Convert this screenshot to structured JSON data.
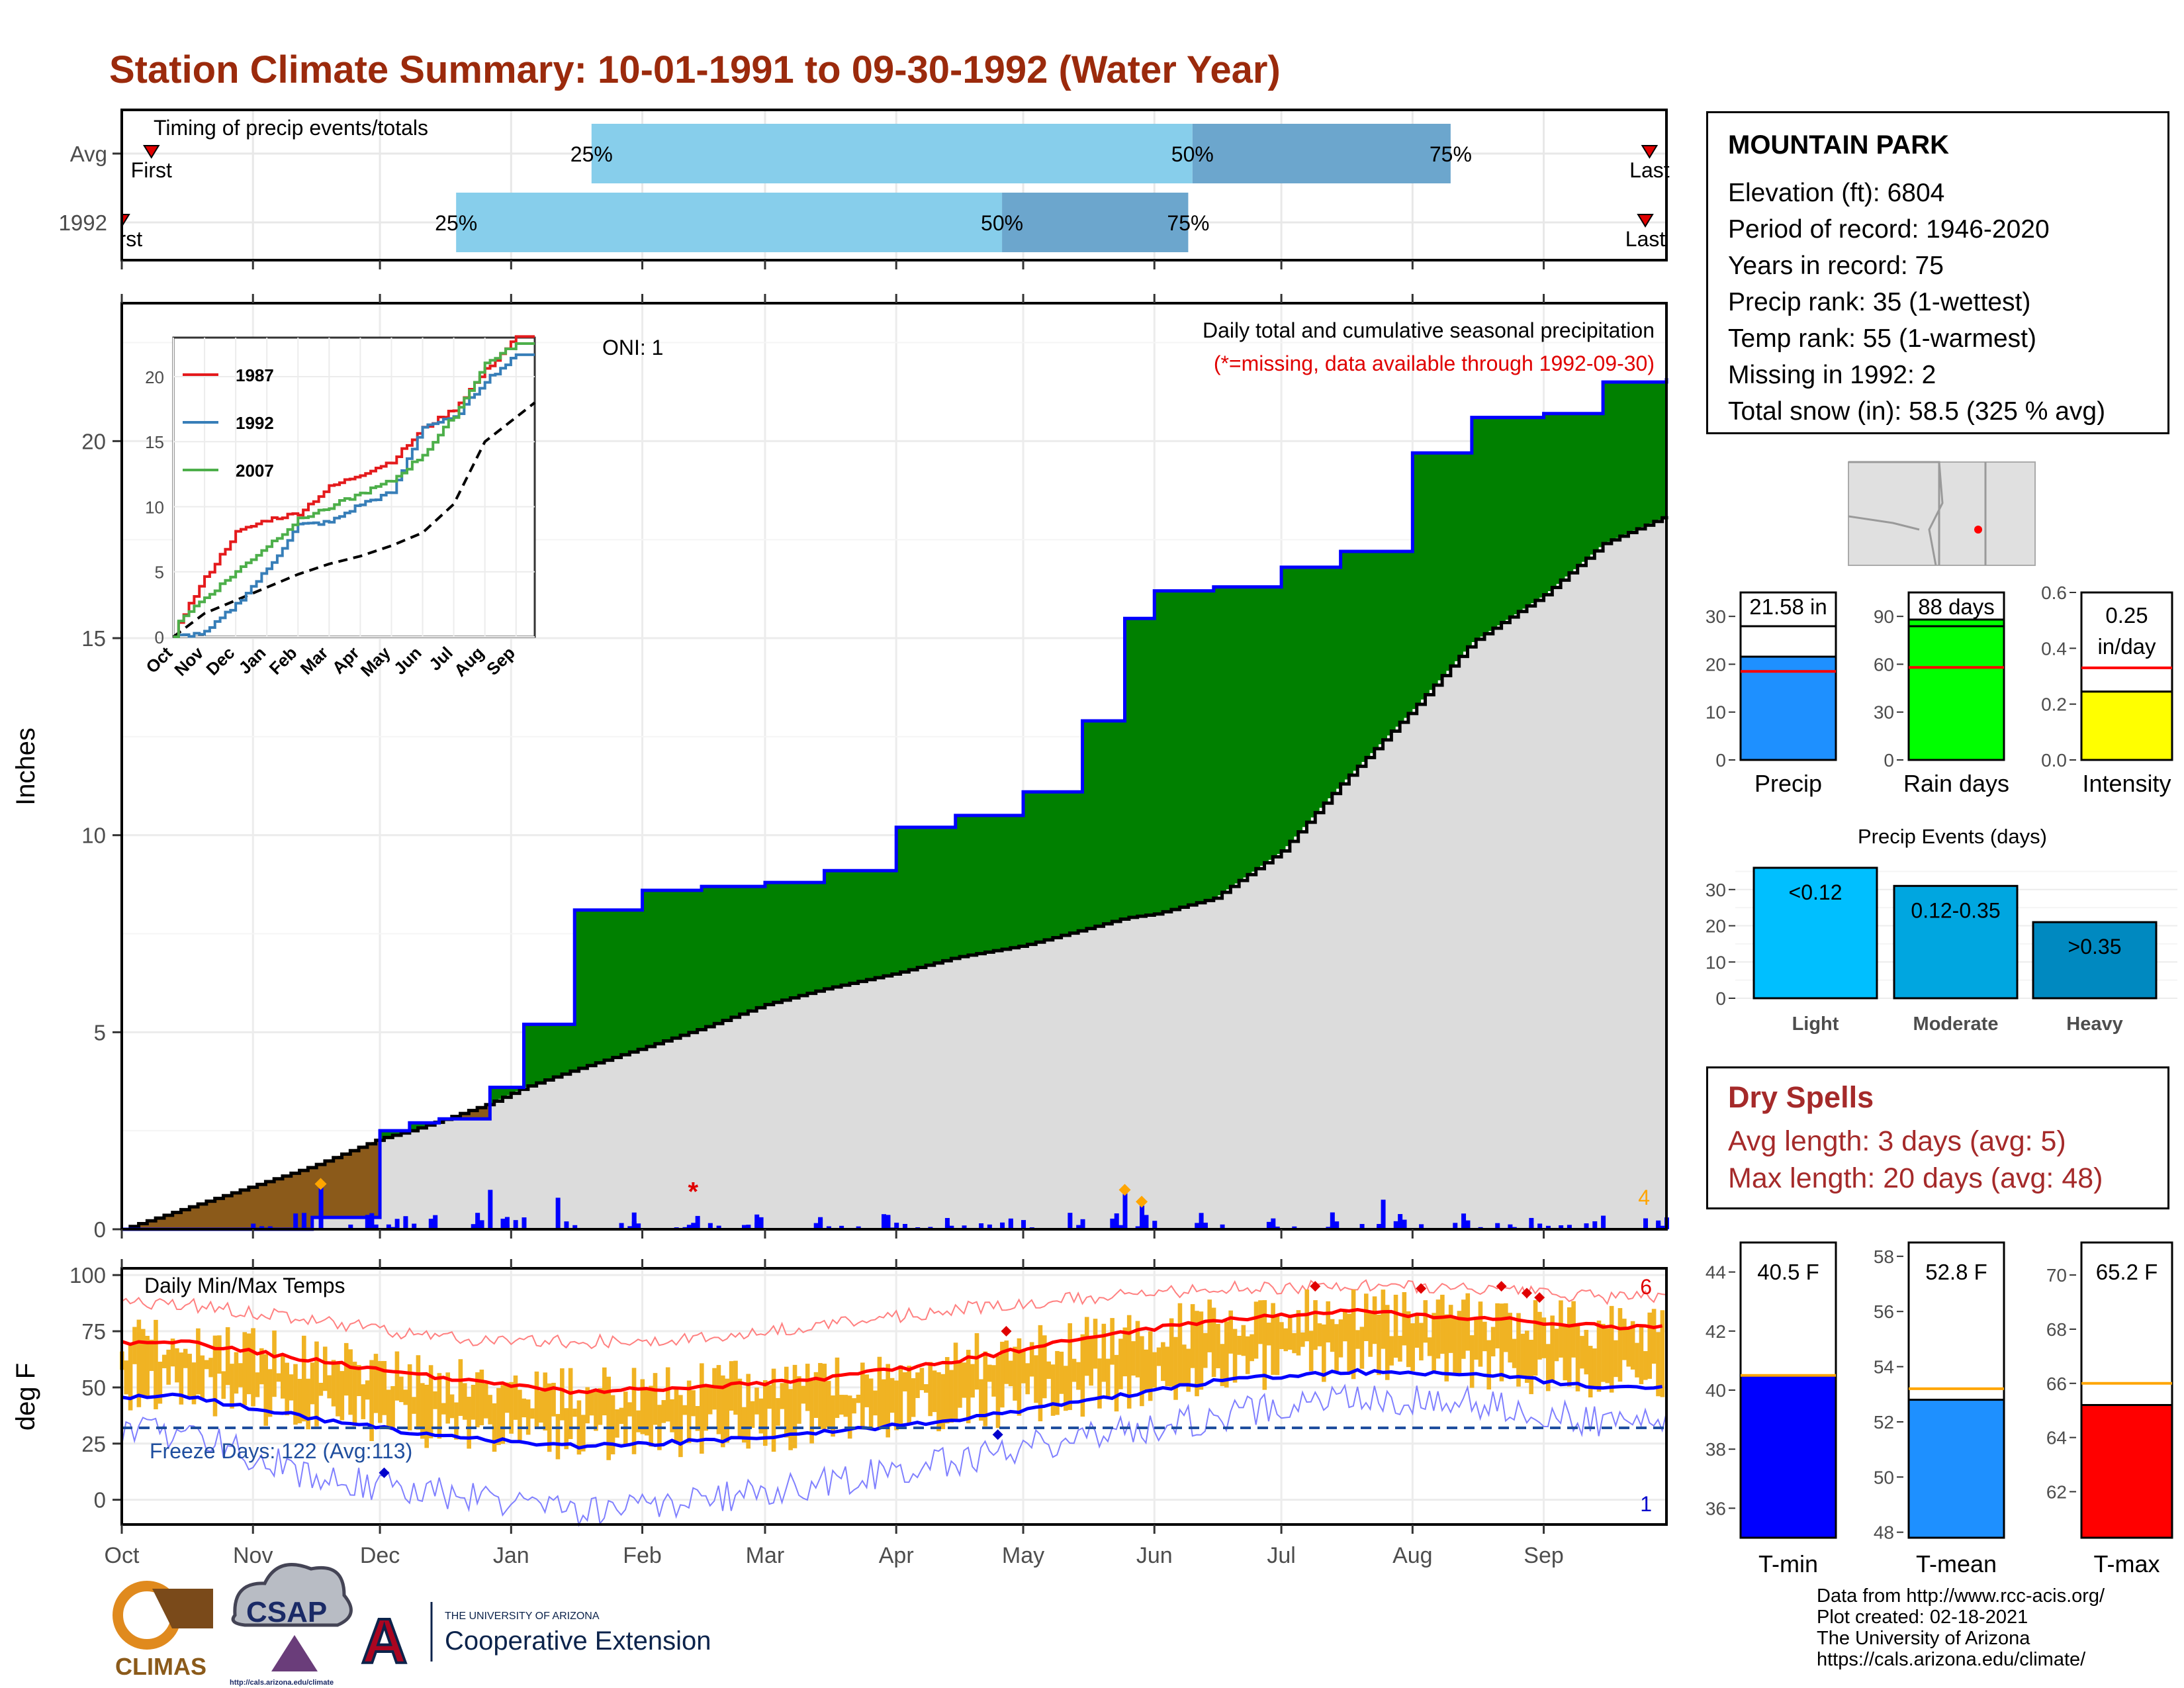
{
  "title": "Station Climate Summary: 10-01-1991 to 09-30-1992 (Water Year)",
  "months": [
    "Oct",
    "Nov",
    "Dec",
    "Jan",
    "Feb",
    "Mar",
    "Apr",
    "May",
    "Jun",
    "Jul",
    "Aug",
    "Sep"
  ],
  "timing_panel": {
    "title": "Timing of precip events/totals",
    "rows": [
      {
        "label": "Avg",
        "first_label": "First",
        "last_label": "Last",
        "p25_label": "25%",
        "p50_label": "50%",
        "p75_label": "75%"
      },
      {
        "label": "1992",
        "first_label": "First",
        "last_label": "Last",
        "p25_label": "25%",
        "p50_label": "50%",
        "p75_label": "75%"
      }
    ]
  },
  "precip_panel": {
    "ylabel": "Inches",
    "annotation_title": "Daily total and cumulative seasonal precipitation",
    "annotation_note": "(*=missing, data available through 1992-09-30)",
    "oni": "ONI: 1",
    "extreme_count": "4",
    "yticks": [
      "0",
      "5",
      "10",
      "15",
      "20"
    ]
  },
  "inset": {
    "series": [
      "1987",
      "1992",
      "2007"
    ],
    "colors": [
      "#e41a1c",
      "#377eb8",
      "#4daf4a"
    ],
    "months": [
      "Oct",
      "Nov",
      "Dec",
      "Jan",
      "Feb",
      "Mar",
      "Apr",
      "May",
      "Jun",
      "Jul",
      "Aug",
      "Sep"
    ],
    "yticks": [
      "0",
      "5",
      "10",
      "15",
      "20"
    ]
  },
  "temp_panel": {
    "ylabel": "deg F",
    "title": "Daily Min/Max Temps",
    "freeze_text": "Freeze Days: 122 (Avg:113)",
    "count_high": "6",
    "count_low": "1",
    "yticks": [
      "0",
      "25",
      "50",
      "75",
      "100"
    ]
  },
  "station": {
    "name": "MOUNTAIN PARK",
    "lines": [
      "Elevation (ft): 6804",
      "Period of record: 1946-2020",
      "Years in record: 75",
      "Precip rank: 35 (1-wettest)",
      "Temp rank: 55 (1-warmest)",
      "Missing in 1992: 2",
      "Total snow (in): 58.5 (325 % avg)"
    ]
  },
  "mini_bars": [
    {
      "label": "Precip",
      "value_text": "21.58 in",
      "value": 21.58,
      "avg": 18.5,
      "ymax": 35,
      "ticks": [
        "0",
        "10",
        "20",
        "30"
      ],
      "color": "#1e90ff"
    },
    {
      "label": "Rain days",
      "value_text": "88 days",
      "value": 88,
      "avg": 58,
      "ymax": 105,
      "ticks": [
        "0",
        "30",
        "60",
        "90"
      ],
      "color": "#00ff00"
    },
    {
      "label": "Intensity",
      "value_text": "0.25 in/day",
      "value_line1": "0.25",
      "value_line2": "in/day",
      "value": 0.245,
      "avg": 0.33,
      "ymax": 0.6,
      "ticks": [
        "0.0",
        "0.2",
        "0.4",
        "0.6"
      ],
      "color": "#ffff00"
    }
  ],
  "precip_events": {
    "title": "Precip Events (days)",
    "categories": [
      "Light",
      "Moderate",
      "Heavy"
    ],
    "bar_labels": [
      "<0.12",
      "0.12-0.35",
      ">0.35"
    ],
    "values": [
      36,
      31,
      21
    ],
    "colors": [
      "#00bfff",
      "#00a6e0",
      "#0089c0"
    ],
    "ticks": [
      "0",
      "10",
      "20",
      "30"
    ]
  },
  "dry_spells": {
    "title": "Dry Spells",
    "lines": [
      "Avg length: 3 days (avg: 5)",
      "Max length: 20 days (avg: 48)"
    ]
  },
  "temp_bars": [
    {
      "label": "T-min",
      "value_text": "40.5 F",
      "value": 40.5,
      "avg": 40.5,
      "ymin": 35,
      "ymax": 45,
      "ticks": [
        "36",
        "38",
        "40",
        "42",
        "44"
      ],
      "color": "#0000ff"
    },
    {
      "label": "T-mean",
      "value_text": "52.8 F",
      "value": 52.8,
      "avg": 53.2,
      "ymin": 47.8,
      "ymax": 58.5,
      "ticks": [
        "48",
        "50",
        "52",
        "54",
        "56",
        "58"
      ],
      "color": "#1e90ff"
    },
    {
      "label": "T-max",
      "value_text": "65.2 F",
      "value": 65.2,
      "avg": 66.0,
      "ymin": 60.3,
      "ymax": 71.2,
      "ticks": [
        "62",
        "64",
        "66",
        "68",
        "70"
      ],
      "color": "#ff0000"
    }
  ],
  "credits": [
    "Data from http://www.rcc-acis.org/",
    "Plot created: 02-18-2021",
    "The University of Arizona",
    "https://cals.arizona.edu/climate/"
  ],
  "logos": {
    "climas": "CLIMAS",
    "csap": "CSAP",
    "csap_url": "http://cals.arizona.edu/climate",
    "ua_line1": "THE UNIVERSITY OF ARIZONA",
    "ua_line2": "Cooperative Extension",
    "ua_mark": "A"
  },
  "chart_data": [
    {
      "type": "bar",
      "title": "Timing of precip events/totals",
      "categories": [
        "Avg",
        "1992"
      ],
      "series": [
        {
          "name": "First",
          "values": [
            "Oct 08",
            "Oct 01"
          ]
        },
        {
          "name": "25%",
          "values": [
            "Jan 20",
            "Dec 19"
          ]
        },
        {
          "name": "50%",
          "values": [
            "Jun 10",
            "Apr 26"
          ]
        },
        {
          "name": "75%",
          "values": [
            "Aug 10",
            "Jun 09"
          ]
        },
        {
          "name": "Last",
          "values": [
            "Sep 26",
            "Sep 25"
          ]
        }
      ]
    },
    {
      "type": "area",
      "title": "Daily total and cumulative seasonal precipitation",
      "ylabel": "Inches",
      "ylim": [
        0,
        23
      ],
      "x": [
        "1991-10-01",
        "1991-11-15",
        "1991-12-01",
        "1991-12-08",
        "1991-12-15",
        "1991-12-27",
        "1992-01-04",
        "1992-01-16",
        "1992-02-01",
        "1992-02-15",
        "1992-03-01",
        "1992-03-15",
        "1992-04-01",
        "1992-04-15",
        "1992-05-01",
        "1992-05-15",
        "1992-05-25",
        "1992-06-01",
        "1992-06-15",
        "1992-07-01",
        "1992-07-15",
        "1992-08-01",
        "1992-08-15",
        "1992-09-01",
        "1992-09-15",
        "1992-09-30"
      ],
      "series": [
        {
          "values": [
            0,
            0.3,
            2.5,
            2.7,
            2.8,
            3.6,
            5.2,
            8.1,
            8.6,
            8.7,
            8.8,
            9.1,
            10.2,
            10.5,
            11.1,
            12.9,
            15.5,
            16.2,
            16.3,
            16.8,
            17.2,
            19.7,
            20.6,
            20.7,
            21.5,
            21.6
          ]
        },
        {
          "values": [
            0,
            1.6,
            2.3,
            2.5,
            2.75,
            3.2,
            3.6,
            4.05,
            4.6,
            5.1,
            5.7,
            6.1,
            6.5,
            6.9,
            7.2,
            7.6,
            7.9,
            8.0,
            8.4,
            9.6,
            11.3,
            13.2,
            14.9,
            16.1,
            17.4,
            18.1
          ]
        }
      ],
      "daily_precip_peaks": [
        {
          "x": "1991-11-17",
          "value": 1.1
        },
        {
          "x": "1991-12-27",
          "value": 1.0
        },
        {
          "x": "1992-01-12",
          "value": 0.8
        },
        {
          "x": "1992-05-25",
          "value": 1.0
        },
        {
          "x": "1992-05-29",
          "value": 0.6
        },
        {
          "x": "1992-07-25",
          "value": 0.75
        }
      ],
      "missing_marker": "1992-02-13"
    },
    {
      "type": "line",
      "title": "Daily Min/Max Temps",
      "ylabel": "deg F",
      "ylim": [
        -10,
        105
      ],
      "x": [
        "Oct",
        "Nov",
        "Dec",
        "Jan",
        "Feb",
        "Mar",
        "Apr",
        "May",
        "Jun",
        "Jul",
        "Aug",
        "Sep"
      ],
      "series": [
        {
          "name": "avg max",
          "values": [
            70,
            62,
            54,
            48,
            50,
            54,
            62,
            72,
            80,
            84,
            81,
            77
          ]
        },
        {
          "name": "avg min",
          "values": [
            46,
            36,
            28,
            24,
            26,
            30,
            36,
            44,
            53,
            57,
            56,
            50
          ]
        },
        {
          "name": "record max",
          "values": [
            87,
            80,
            72,
            70,
            72,
            78,
            85,
            90,
            94,
            95,
            94,
            90
          ]
        },
        {
          "name": "record min",
          "values": [
            30,
            10,
            3,
            -5,
            0,
            8,
            18,
            28,
            37,
            46,
            43,
            34
          ]
        }
      ],
      "freeze_threshold": 32
    },
    {
      "type": "bar",
      "categories": [
        "Precip",
        "Rain days",
        "Intensity"
      ],
      "values": [
        21.58,
        88,
        0.25
      ]
    },
    {
      "type": "bar",
      "title": "Precip Events (days)",
      "categories": [
        "Light",
        "Moderate",
        "Heavy"
      ],
      "values": [
        36,
        31,
        21
      ]
    },
    {
      "type": "bar",
      "categories": [
        "T-min",
        "T-mean",
        "T-max"
      ],
      "values": [
        40.5,
        52.8,
        65.2
      ]
    },
    {
      "type": "line",
      "categories": [
        "Oct",
        "Nov",
        "Dec",
        "Jan",
        "Feb",
        "Mar",
        "Apr",
        "May",
        "Jun",
        "Jul",
        "Aug",
        "Sep"
      ],
      "series": [
        {
          "name": "1987",
          "values": [
            0.5,
            4.5,
            8,
            9,
            9.5,
            11.5,
            12.5,
            13.5,
            16,
            17.5,
            20.5,
            23
          ]
        },
        {
          "name": "1992",
          "values": [
            0,
            0.3,
            2.5,
            5.2,
            8.6,
            8.8,
            10.2,
            11.1,
            16.2,
            16.8,
            19.7,
            21.6
          ]
        },
        {
          "name": "2007",
          "values": [
            1,
            3,
            5,
            7,
            9,
            10,
            11,
            12,
            14,
            17,
            21,
            22.5
          ]
        }
      ]
    }
  ]
}
